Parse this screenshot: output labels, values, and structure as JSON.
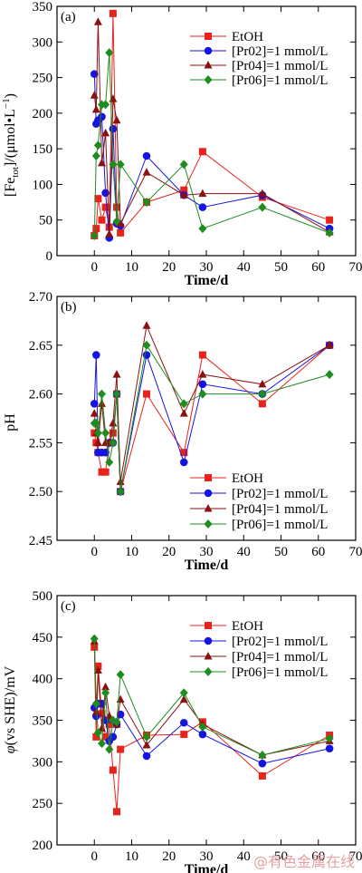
{
  "colors": {
    "EtOH": "#e8231b",
    "Pr02": "#1515e0",
    "Pr04": "#8b1010",
    "Pr06": "#1e8c1e"
  },
  "watermark": "@有色金属在线",
  "chart_data": [
    {
      "type": "line",
      "panel_label": "(a)",
      "xlabel": "Time/d",
      "ylabel_main": "[Fe",
      "ylabel_sub": "tot",
      "ylabel_rest": "]/(μmol•L",
      "ylabel_sup": "−1",
      "ylabel_end": ")",
      "xlim": [
        -10,
        70
      ],
      "ylim": [
        0,
        350
      ],
      "xticks": [
        0,
        10,
        20,
        30,
        40,
        50,
        60,
        70
      ],
      "yticks": [
        0,
        50,
        100,
        150,
        200,
        250,
        300,
        350
      ],
      "legend_position": "top-right",
      "series": [
        {
          "name": "EtOH",
          "marker": "square",
          "color_key": "EtOH",
          "x": [
            0,
            0.5,
            1,
            2,
            3,
            4,
            5,
            6,
            7,
            14,
            24,
            29,
            45,
            63
          ],
          "y": [
            28,
            38,
            80,
            50,
            68,
            40,
            340,
            68,
            32,
            75,
            92,
            146,
            82,
            50
          ]
        },
        {
          "name": "[Pr02]=1 mmol/L",
          "marker": "circle",
          "color_key": "Pr02",
          "x": [
            0,
            0.5,
            1,
            2,
            3,
            4,
            5,
            6,
            7,
            14,
            24,
            29,
            45,
            63
          ],
          "y": [
            255,
            185,
            190,
            195,
            88,
            25,
            178,
            45,
            42,
            140,
            85,
            68,
            85,
            38
          ]
        },
        {
          "name": "[Pr04]=1 mmol/L",
          "marker": "triangle",
          "color_key": "Pr04",
          "x": [
            0,
            0.5,
            1,
            2,
            3,
            4,
            5,
            6,
            7,
            14,
            24,
            29,
            45,
            63
          ],
          "y": [
            225,
            205,
            328,
            130,
            172,
            30,
            220,
            190,
            45,
            117,
            85,
            87,
            87,
            33
          ]
        },
        {
          "name": "[Pr06]=1 mmol/L",
          "marker": "diamond",
          "color_key": "Pr06",
          "x": [
            0,
            0.5,
            1,
            2,
            3,
            4,
            5,
            6,
            7,
            14,
            24,
            29,
            45,
            63
          ],
          "y": [
            28,
            140,
            155,
            212,
            212,
            285,
            128,
            48,
            128,
            75,
            128,
            38,
            68,
            32
          ]
        }
      ]
    },
    {
      "type": "line",
      "panel_label": "(b)",
      "xlabel": "Time/d",
      "ylabel": "pH",
      "xlim": [
        -10,
        70
      ],
      "ylim": [
        2.45,
        2.7
      ],
      "xticks": [
        0,
        10,
        20,
        30,
        40,
        50,
        60,
        70
      ],
      "yticks": [
        2.45,
        2.5,
        2.55,
        2.6,
        2.65,
        2.7
      ],
      "ytick_labels": [
        "2.45",
        "2.50",
        "2.55",
        "2.60",
        "2.65",
        "2.70"
      ],
      "legend_position": "bottom-right",
      "series": [
        {
          "name": "EtOH",
          "marker": "square",
          "color_key": "EtOH",
          "x": [
            0,
            0.5,
            1,
            2,
            3,
            4,
            5,
            6,
            7,
            14,
            24,
            29,
            45,
            63
          ],
          "y": [
            2.56,
            2.55,
            2.54,
            2.52,
            2.52,
            2.55,
            2.56,
            2.6,
            2.5,
            2.6,
            2.54,
            2.64,
            2.59,
            2.65
          ]
        },
        {
          "name": "[Pr02]=1 mmol/L",
          "marker": "circle",
          "color_key": "Pr02",
          "x": [
            0,
            0.5,
            1,
            2,
            3,
            4,
            5,
            6,
            7,
            14,
            24,
            29,
            45,
            63
          ],
          "y": [
            2.59,
            2.64,
            2.54,
            2.54,
            2.54,
            2.55,
            2.55,
            2.6,
            2.5,
            2.64,
            2.53,
            2.61,
            2.6,
            2.65
          ]
        },
        {
          "name": "[Pr04]=1 mmol/L",
          "marker": "triangle",
          "color_key": "Pr04",
          "x": [
            0,
            0.5,
            1,
            2,
            3,
            4,
            5,
            6,
            7,
            14,
            24,
            29,
            45,
            63
          ],
          "y": [
            2.58,
            2.56,
            2.55,
            2.59,
            2.55,
            2.55,
            2.57,
            2.62,
            2.51,
            2.67,
            2.58,
            2.62,
            2.61,
            2.65
          ]
        },
        {
          "name": "[Pr06]=1 mmol/L",
          "marker": "diamond",
          "color_key": "Pr06",
          "x": [
            0,
            0.5,
            1,
            2,
            3,
            4,
            5,
            6,
            7,
            14,
            24,
            29,
            45,
            63
          ],
          "y": [
            2.57,
            2.57,
            2.56,
            2.6,
            2.56,
            2.53,
            2.55,
            2.6,
            2.5,
            2.65,
            2.59,
            2.6,
            2.6,
            2.62
          ]
        }
      ]
    },
    {
      "type": "line",
      "panel_label": "(c)",
      "xlabel": "Time/d",
      "ylabel_phi": "φ",
      "ylabel_rest": "(vs SHE)/mV",
      "xlim": [
        -10,
        70
      ],
      "ylim": [
        200,
        500
      ],
      "xticks": [
        0,
        10,
        20,
        30,
        40,
        50,
        60,
        70
      ],
      "yticks": [
        200,
        250,
        300,
        350,
        400,
        450,
        500
      ],
      "legend_position": "top-right",
      "series": [
        {
          "name": "EtOH",
          "marker": "square",
          "color_key": "EtOH",
          "x": [
            0,
            0.5,
            1,
            2,
            3,
            4,
            5,
            6,
            7,
            14,
            24,
            29,
            45,
            63
          ],
          "y": [
            438,
            330,
            415,
            358,
            330,
            345,
            290,
            240,
            315,
            332,
            333,
            348,
            283,
            332
          ]
        },
        {
          "name": "[Pr02]=1 mmol/L",
          "marker": "circle",
          "color_key": "Pr02",
          "x": [
            0,
            0.5,
            1,
            2,
            3,
            4,
            5,
            6,
            7,
            14,
            24,
            29,
            45,
            63
          ],
          "y": [
            365,
            355,
            370,
            370,
            350,
            325,
            330,
            345,
            357,
            307,
            347,
            333,
            298,
            316
          ]
        },
        {
          "name": "[Pr04]=1 mmol/L",
          "marker": "triangle",
          "color_key": "Pr04",
          "x": [
            0,
            0.5,
            1,
            2,
            3,
            4,
            5,
            6,
            7,
            14,
            24,
            29,
            45,
            63
          ],
          "y": [
            445,
            360,
            410,
            340,
            390,
            355,
            350,
            345,
            375,
            320,
            375,
            345,
            308,
            325
          ]
        },
        {
          "name": "[Pr06]=1 mmol/L",
          "marker": "diamond",
          "color_key": "Pr06",
          "x": [
            0,
            0.5,
            1,
            2,
            3,
            4,
            5,
            6,
            7,
            14,
            24,
            29,
            45,
            63
          ],
          "y": [
            448,
            370,
            335,
            322,
            383,
            315,
            350,
            348,
            405,
            330,
            383,
            342,
            308,
            328
          ]
        }
      ]
    }
  ]
}
